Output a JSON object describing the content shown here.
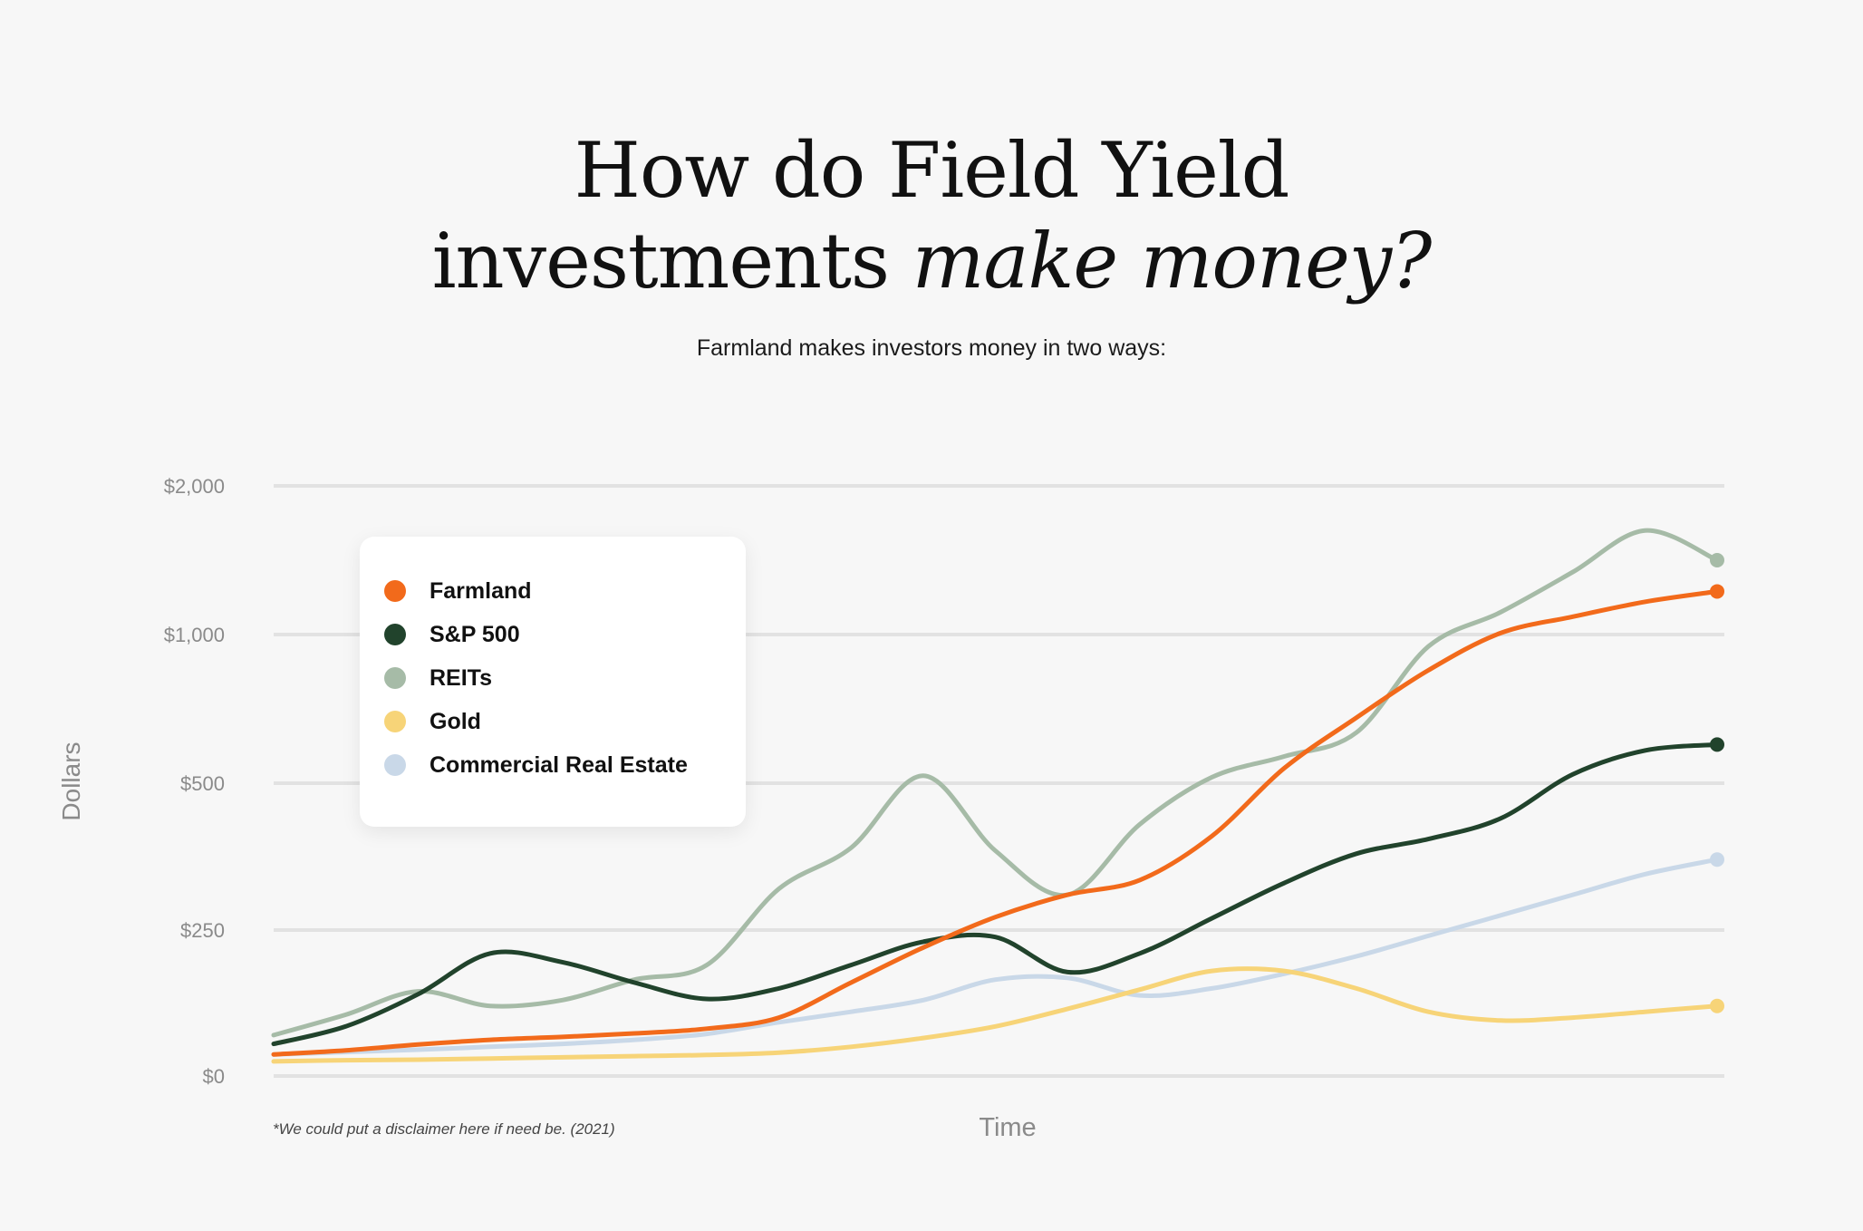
{
  "title": {
    "line1": "How do Field Yield",
    "line2_plain": "investments ",
    "line2_emphasis": "make money?"
  },
  "subtitle": "Farmland makes investors money in two ways:",
  "disclaimer": "*We could put a disclaimer here if need be. (2021)",
  "colors": {
    "background": "#f7f7f7",
    "gridline": "#e2e2e2",
    "tick_text": "#8a8a8a",
    "farmland": "#f26a1b",
    "sp500": "#21432c",
    "reits": "#a6bba7",
    "gold": "#f7d478",
    "commercial_real_estate": "#c9d8e8"
  },
  "chart_data": {
    "type": "line",
    "xlabel": "Time",
    "ylabel": "Dollars",
    "y_ticks": [
      "$0",
      "$250",
      "$500",
      "$1,000",
      "$2,000"
    ],
    "y_tick_values": [
      0,
      250,
      500,
      1000,
      2000
    ],
    "grid": true,
    "legend_position": "top-left",
    "x": [
      0,
      5,
      10,
      15,
      20,
      25,
      30,
      35,
      40,
      45,
      50,
      55,
      60,
      65,
      70,
      75,
      80,
      85,
      90,
      95,
      100
    ],
    "series": [
      {
        "name": "Farmland",
        "color": "#f26a1b",
        "end_marker": true,
        "values": [
          37,
          44,
          54,
          62,
          67,
          73,
          81,
          100,
          160,
          220,
          272,
          310,
          335,
          410,
          550,
          720,
          880,
          1010,
          1120,
          1220,
          1290
        ]
      },
      {
        "name": "S&P 500",
        "color": "#21432c",
        "end_marker": true,
        "values": [
          55,
          85,
          140,
          210,
          195,
          160,
          132,
          150,
          190,
          230,
          238,
          178,
          210,
          270,
          330,
          380,
          405,
          440,
          530,
          610,
          630
        ]
      },
      {
        "name": "REITs",
        "color": "#a6bba7",
        "end_marker": true,
        "values": [
          70,
          105,
          145,
          120,
          130,
          165,
          190,
          320,
          390,
          525,
          385,
          310,
          430,
          520,
          590,
          670,
          960,
          1150,
          1420,
          1700,
          1500
        ]
      },
      {
        "name": "Gold",
        "color": "#f7d478",
        "end_marker": true,
        "values": [
          25,
          27,
          28,
          30,
          32,
          34,
          36,
          40,
          50,
          65,
          85,
          115,
          148,
          180,
          180,
          150,
          110,
          95,
          100,
          110,
          120
        ]
      },
      {
        "name": "Commercial Real Estate",
        "color": "#c9d8e8",
        "end_marker": true,
        "values": [
          37,
          41,
          45,
          50,
          55,
          62,
          72,
          92,
          110,
          130,
          165,
          168,
          138,
          150,
          175,
          205,
          240,
          275,
          310,
          345,
          370
        ]
      }
    ]
  }
}
